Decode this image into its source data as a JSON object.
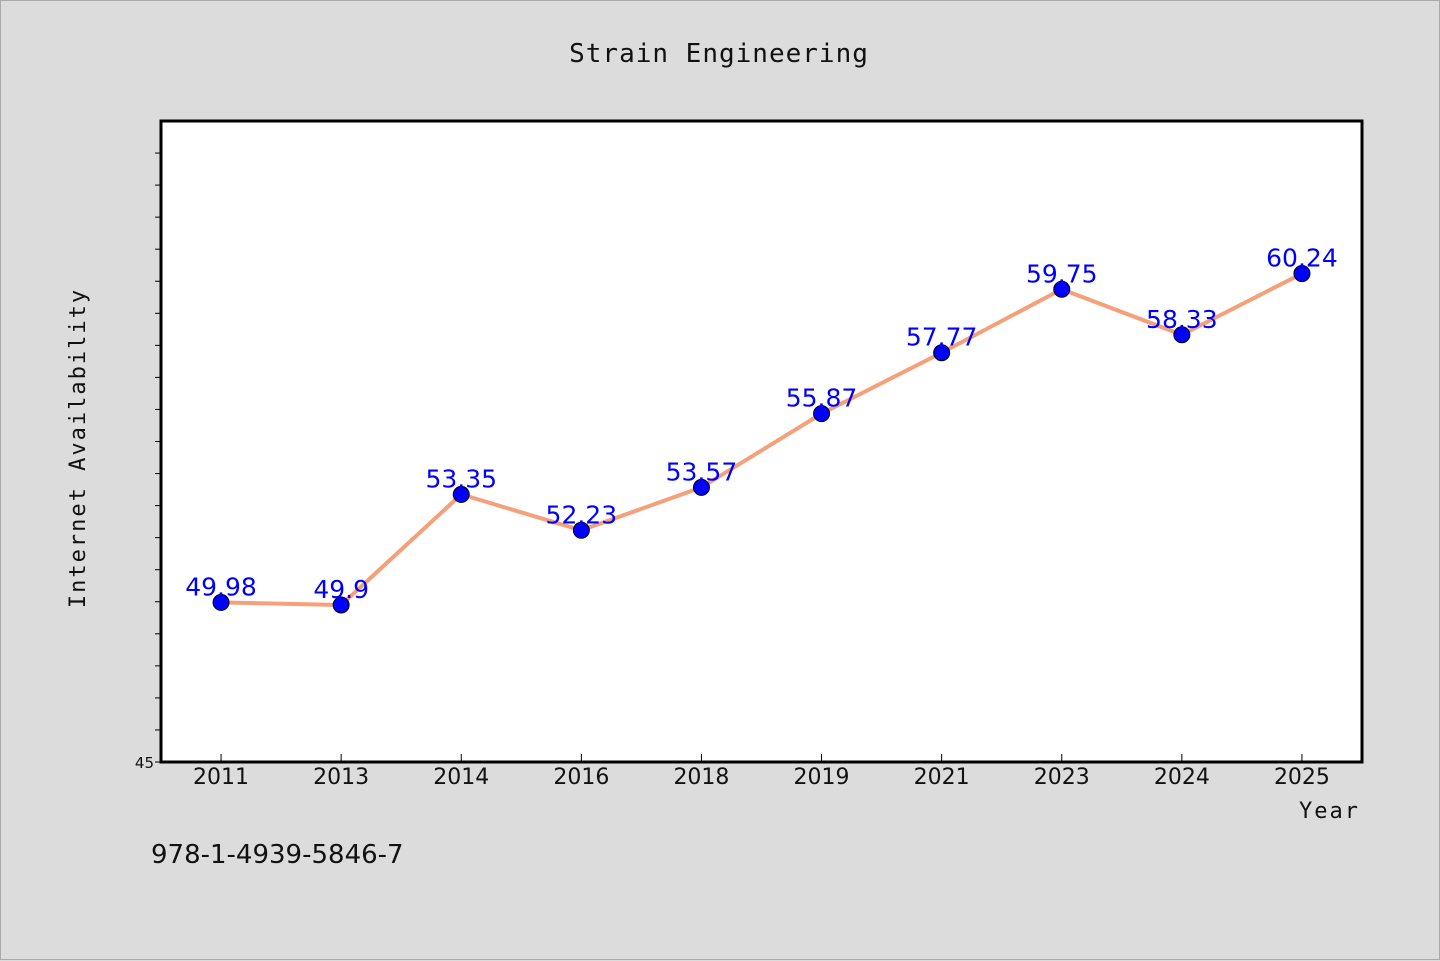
{
  "chart_data": {
    "type": "line",
    "title": "Strain Engineering",
    "xlabel": "Year",
    "ylabel": "Internet Availability",
    "categories": [
      "2011",
      "2013",
      "2014",
      "2016",
      "2018",
      "2019",
      "2021",
      "2023",
      "2024",
      "2025"
    ],
    "series": [
      {
        "values": [
          49.98,
          49.9,
          53.35,
          52.23,
          53.57,
          55.87,
          57.77,
          59.75,
          58.33,
          60.24
        ],
        "line_color": "#f4a07a",
        "marker_color": "#0000ff"
      }
    ],
    "data_labels": [
      "49.98",
      "49.9",
      "53.35",
      "52.23",
      "53.57",
      "55.87",
      "57.77",
      "59.75",
      "58.33",
      "60.24"
    ],
    "data_label_color": "#0000ff",
    "y_tick_labels": [
      "45"
    ],
    "ylim": [
      45,
      65
    ],
    "grid": false,
    "legend": "none"
  },
  "footer": {
    "identifier": "978-1-4939-5846-7"
  }
}
